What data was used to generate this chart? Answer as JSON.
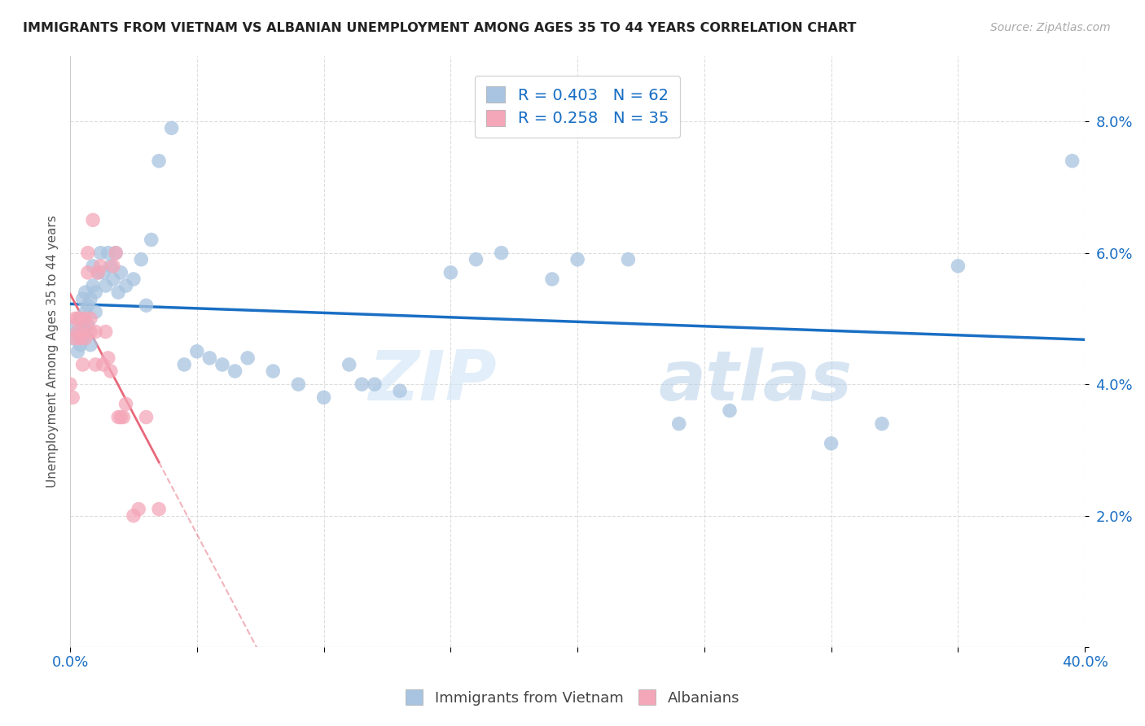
{
  "title": "IMMIGRANTS FROM VIETNAM VS ALBANIAN UNEMPLOYMENT AMONG AGES 35 TO 44 YEARS CORRELATION CHART",
  "source": "Source: ZipAtlas.com",
  "ylabel": "Unemployment Among Ages 35 to 44 years",
  "xlim": [
    0,
    0.4
  ],
  "ylim": [
    0,
    0.09
  ],
  "xticks": [
    0.0,
    0.05,
    0.1,
    0.15,
    0.2,
    0.25,
    0.3,
    0.35,
    0.4
  ],
  "yticks": [
    0.0,
    0.02,
    0.04,
    0.06,
    0.08
  ],
  "xticklabels_show": [
    "0.0%",
    "40.0%"
  ],
  "yticklabels": [
    "",
    "2.0%",
    "4.0%",
    "6.0%",
    "8.0%"
  ],
  "vietnam_R": 0.403,
  "vietnam_N": 62,
  "albanian_R": 0.258,
  "albanian_N": 35,
  "vietnam_color": "#a8c4e0",
  "albanian_color": "#f4a7b9",
  "vietnam_line_color": "#1a6fc4",
  "albanian_line_color": "#e8687a",
  "vietnam_scatter_x": [
    0.001,
    0.002,
    0.003,
    0.003,
    0.004,
    0.004,
    0.005,
    0.005,
    0.005,
    0.006,
    0.006,
    0.006,
    0.007,
    0.007,
    0.008,
    0.008,
    0.009,
    0.009,
    0.01,
    0.01,
    0.011,
    0.012,
    0.013,
    0.014,
    0.015,
    0.016,
    0.017,
    0.018,
    0.019,
    0.02,
    0.022,
    0.025,
    0.028,
    0.03,
    0.032,
    0.035,
    0.04,
    0.045,
    0.05,
    0.055,
    0.06,
    0.065,
    0.07,
    0.08,
    0.09,
    0.1,
    0.11,
    0.115,
    0.12,
    0.13,
    0.15,
    0.16,
    0.17,
    0.19,
    0.2,
    0.22,
    0.24,
    0.26,
    0.3,
    0.32,
    0.35,
    0.395
  ],
  "vietnam_scatter_y": [
    0.047,
    0.049,
    0.045,
    0.048,
    0.046,
    0.05,
    0.047,
    0.05,
    0.053,
    0.048,
    0.051,
    0.054,
    0.049,
    0.052,
    0.046,
    0.053,
    0.055,
    0.058,
    0.051,
    0.054,
    0.057,
    0.06,
    0.057,
    0.055,
    0.06,
    0.058,
    0.056,
    0.06,
    0.054,
    0.057,
    0.055,
    0.056,
    0.059,
    0.052,
    0.062,
    0.074,
    0.079,
    0.043,
    0.045,
    0.044,
    0.043,
    0.042,
    0.044,
    0.042,
    0.04,
    0.038,
    0.043,
    0.04,
    0.04,
    0.039,
    0.057,
    0.059,
    0.06,
    0.056,
    0.059,
    0.059,
    0.034,
    0.036,
    0.031,
    0.034,
    0.058,
    0.074
  ],
  "albanian_scatter_x": [
    0.0,
    0.001,
    0.002,
    0.002,
    0.003,
    0.003,
    0.004,
    0.004,
    0.005,
    0.005,
    0.006,
    0.006,
    0.007,
    0.007,
    0.008,
    0.008,
    0.009,
    0.01,
    0.01,
    0.011,
    0.012,
    0.013,
    0.014,
    0.015,
    0.016,
    0.017,
    0.018,
    0.019,
    0.02,
    0.021,
    0.022,
    0.025,
    0.027,
    0.03,
    0.035
  ],
  "albanian_scatter_y": [
    0.04,
    0.038,
    0.047,
    0.05,
    0.048,
    0.05,
    0.047,
    0.05,
    0.043,
    0.048,
    0.047,
    0.05,
    0.057,
    0.06,
    0.048,
    0.05,
    0.065,
    0.043,
    0.048,
    0.057,
    0.058,
    0.043,
    0.048,
    0.044,
    0.042,
    0.058,
    0.06,
    0.035,
    0.035,
    0.035,
    0.037,
    0.02,
    0.021,
    0.035,
    0.021
  ],
  "watermark_zip": "ZIP",
  "watermark_atlas": "atlas",
  "background_color": "#ffffff",
  "grid_color": "#dddddd"
}
